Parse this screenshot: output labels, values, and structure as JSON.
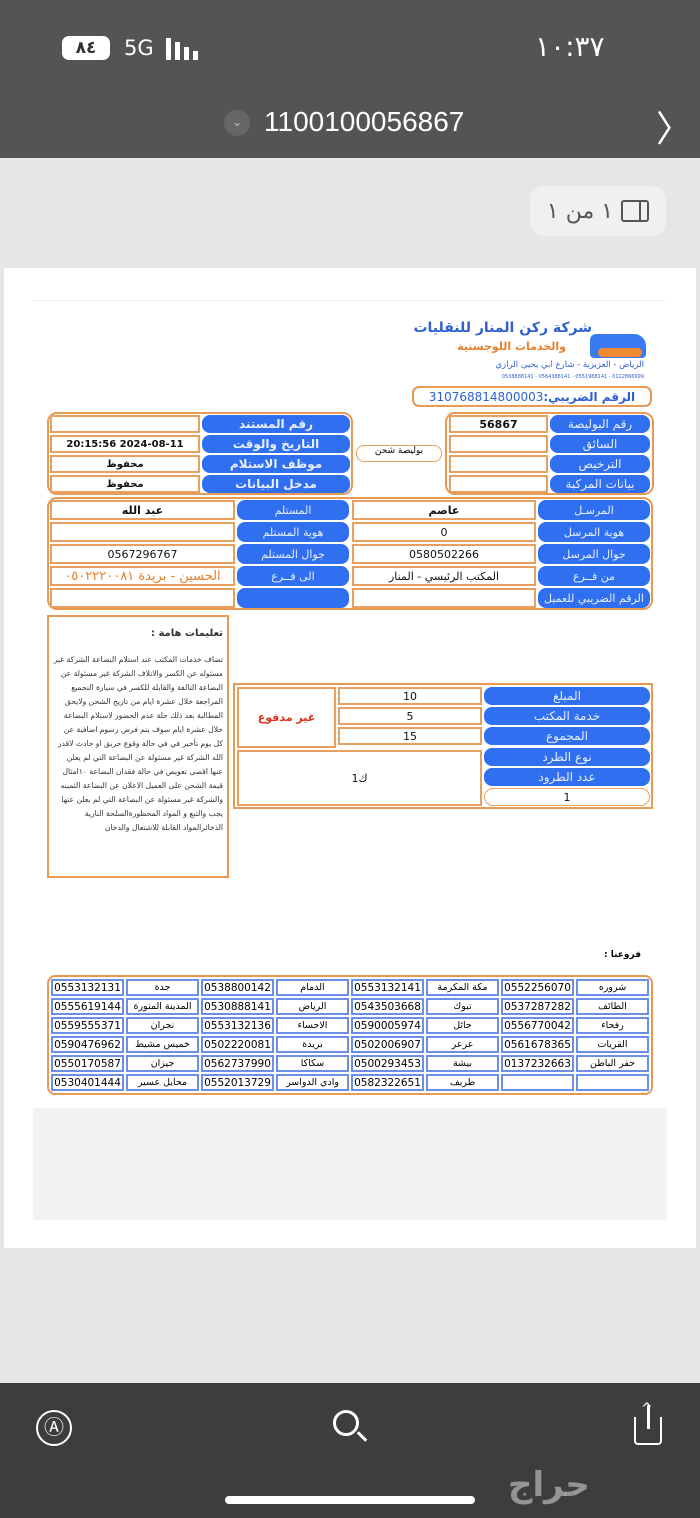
{
  "status_bar": {
    "battery": "٨٤",
    "network": "5G",
    "time": "١٠:٣٧"
  },
  "nav": {
    "title": "1100100056867",
    "page_indicator": "١ من ١"
  },
  "doc": {
    "company_name": "شركة ركن المنار للنقليات",
    "company_sub": "والخدمات اللوجستية",
    "address": "الرياض - العزيزية - شارع ابي يحيى الرازي",
    "phones_line": "0538888141 - 0564388141 - 0551988141 - 0112866999",
    "tax_label": "الرقم الضريبي:",
    "tax_value": "310768814800003",
    "waybill_type": "بوليصة شحن",
    "right_table": [
      {
        "label": "رقم البوليصة",
        "value": "56867"
      },
      {
        "label": "السائق",
        "value": ""
      },
      {
        "label": "الترخيص",
        "value": ""
      },
      {
        "label": "بيانات المركبة",
        "value": ""
      }
    ],
    "left_table": [
      {
        "label": "رقم المستند",
        "value": ""
      },
      {
        "label": "التاريخ والوقت",
        "value": "2024-08-11 20:15:56"
      },
      {
        "label": "موظف الاستلام",
        "value": "محفوظ"
      },
      {
        "label": "مدخل البيانات",
        "value": "محفوظ"
      }
    ],
    "sender": [
      {
        "label": "المرسـل",
        "value": "عاصم"
      },
      {
        "label": "هوية المرسل",
        "value": "0"
      },
      {
        "label": "جوال المرسل",
        "value": "0580502266"
      },
      {
        "label": "من فــرع",
        "value": "المكتب الرئيسي - المنار"
      },
      {
        "label": "الرقم الضريبي للعميل",
        "value": ""
      }
    ],
    "receiver": [
      {
        "label": "المستلم",
        "value": "عبد الله"
      },
      {
        "label": "هوية المستلم",
        "value": ""
      },
      {
        "label": "جوال المستلم",
        "value": "0567296767"
      },
      {
        "label": "الى فــرع",
        "value": "الحسين - بريدة ٠٥٠٢٢٢٠٠٨١"
      },
      {
        "label": "",
        "value": ""
      }
    ],
    "instructions_title": "تعليمات هامة :",
    "instructions": "تضاف خدمات المكتب عند استلام البضاعة الشركة غير مسئوله عن الكسر والاتلاف الشركة غير مسئولة عن البضاعة التالفة والقابلة للكسر في سيارة التجميع المراجعة خلال عشرة ايام من تاريخ الشحن ولايحق المطالبة بعد ذلك حلة عدم الحضور لاستلام البضاعة خلال عشرة ايام سوف يتم فرض رسوم اضافية عن كل يوم تأخير في في حالة وقوع حريق او حادث لاقدر الله الشركة غير مسئولة عن البضاعة التي لم يعلن عنها اقصى تعويض في حالة فقدان البضاعة ١٠امثال قيمة الشحن على العميل الاعلان عن البضاعة الثمينه والشركة غير مسئولة عن البضاعة التي لم يعلن عنها يجب والتبع و المواد المحظورةالسلحة النارية الذخائرالمواد القابلة للاشتعال والدخان",
    "amounts": [
      {
        "label": "المبلغ",
        "value": "10"
      },
      {
        "label": "خدمة المكتب",
        "value": "5"
      },
      {
        "label": "المجموع",
        "value": "15"
      }
    ],
    "payment_status": "غير مدفوع",
    "parcel_type_label": "نوع الطرد",
    "parcel_count_label": "عدد الطرود",
    "parcel_count": "1",
    "parcel_type_value": "ك1",
    "branches_title": "فروعنا :",
    "branches": [
      [
        "شروره",
        "0552256070",
        "مكة المكرمة",
        "0553132141",
        "الدمام",
        "0538800142",
        "جدة",
        "0553132131"
      ],
      [
        "الطائف",
        "0537287282",
        "تبوك",
        "0543503668",
        "الرياض",
        "0530888141",
        "المدينة المنورة",
        "0555619144"
      ],
      [
        "رفحاء",
        "0556770042",
        "حائل",
        "0590005974",
        "الاحساء",
        "0553132136",
        "نجران",
        "0559555371"
      ],
      [
        "القريات",
        "0561678365",
        "عرعر",
        "0502006907",
        "بريدة",
        "0502220081",
        "خميس مشيط",
        "0590476962"
      ],
      [
        "حفر الباطن",
        "0137232663",
        "بيشة",
        "0500293453",
        "سكاكا",
        "0562737990",
        "جيزان",
        "0550170587"
      ],
      [
        "",
        "",
        "طريف",
        "0582322651",
        "وادي الدواسر",
        "0552013729",
        "محايل عسير",
        "0530401444"
      ]
    ]
  },
  "watermark": "حراج",
  "colors": {
    "label_blue": "#2f6ff0",
    "frame_orange": "#e89a55",
    "branch_blue": "#6d8ee6",
    "unpaid_red": "#e0301e",
    "dest_orange": "#e8802a"
  }
}
